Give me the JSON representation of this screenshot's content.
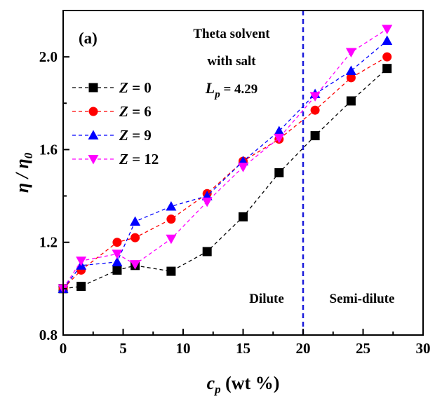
{
  "chart_data": {
    "type": "line",
    "panel_label": "(a)",
    "xlabel": "c",
    "xlabel_sub": "p",
    "xlabel_unit": " (wt %)",
    "ylabel": "η / η",
    "ylabel_sub": "0",
    "xlim": [
      0,
      30
    ],
    "ylim": [
      0.8,
      2.2
    ],
    "x_ticks": [
      0,
      5,
      10,
      15,
      20,
      25,
      30
    ],
    "x_tick_labels": [
      "0",
      "5",
      "10",
      "15",
      "20",
      "25",
      "30"
    ],
    "y_ticks": [
      0.8,
      1.2,
      1.6,
      2.0
    ],
    "y_tick_labels": [
      "0.8",
      "1.2",
      "1.6",
      "2.0"
    ],
    "annotations": {
      "line1": "Theta solvent",
      "line2": "with salt",
      "lp_symbol": "L",
      "lp_sub": "p",
      "lp_value": " = 4.29",
      "dilute": "Dilute",
      "semidilute": "Semi-dilute"
    },
    "vline_x": 20,
    "vline_color": "#1a1adb",
    "series": [
      {
        "name": "Z = 0",
        "label": "Z",
        "value_label": " = 0",
        "color": "#000000",
        "marker": "square",
        "x": [
          0,
          1.5,
          4.5,
          6,
          9,
          12,
          15,
          18,
          21,
          24,
          27
        ],
        "y": [
          1.0,
          1.01,
          1.08,
          1.1,
          1.075,
          1.16,
          1.31,
          1.5,
          1.66,
          1.81,
          1.95
        ]
      },
      {
        "name": "Z = 6",
        "label": "Z",
        "value_label": " = 6",
        "color": "#ff0000",
        "marker": "circle",
        "x": [
          0,
          1.5,
          4.5,
          6,
          9,
          12,
          15,
          18,
          21,
          24,
          27
        ],
        "y": [
          1.0,
          1.08,
          1.2,
          1.22,
          1.3,
          1.41,
          1.55,
          1.645,
          1.77,
          1.91,
          2.0
        ]
      },
      {
        "name": "Z = 9",
        "label": "Z",
        "value_label": " = 9",
        "color": "#0000ff",
        "marker": "triangle-up",
        "x": [
          0,
          1.5,
          4.5,
          6,
          9,
          12,
          15,
          18,
          21,
          24,
          27
        ],
        "y": [
          1.0,
          1.1,
          1.115,
          1.29,
          1.355,
          1.4,
          1.55,
          1.68,
          1.84,
          1.94,
          2.07
        ]
      },
      {
        "name": "Z = 12",
        "label": "Z",
        "value_label": " = 12",
        "color": "#ff00ff",
        "marker": "triangle-down",
        "x": [
          0,
          1.5,
          4.5,
          6,
          9,
          12,
          15,
          18,
          21,
          24,
          27
        ],
        "y": [
          1.0,
          1.12,
          1.15,
          1.105,
          1.215,
          1.375,
          1.525,
          1.65,
          1.83,
          2.02,
          2.12
        ]
      }
    ]
  }
}
